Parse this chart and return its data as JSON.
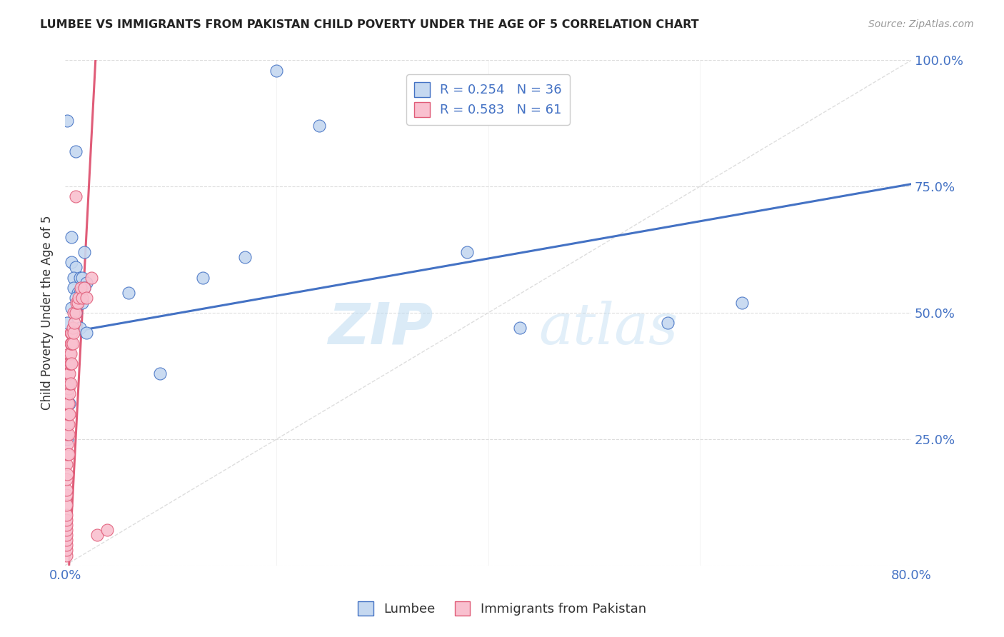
{
  "title": "LUMBEE VS IMMIGRANTS FROM PAKISTAN CHILD POVERTY UNDER THE AGE OF 5 CORRELATION CHART",
  "source": "Source: ZipAtlas.com",
  "ylabel": "Child Poverty Under the Age of 5",
  "xlim": [
    0.0,
    0.8
  ],
  "ylim": [
    0.0,
    1.0
  ],
  "lumbee_R": 0.254,
  "lumbee_N": 36,
  "pakistan_R": 0.583,
  "pakistan_N": 61,
  "lumbee_color": "#c5d8f0",
  "pakistan_color": "#f9c0cf",
  "lumbee_line_color": "#4472c4",
  "pakistan_line_color": "#e05c78",
  "lumbee_scatter": [
    [
      0.002,
      0.88
    ],
    [
      0.01,
      0.82
    ],
    [
      0.006,
      0.65
    ],
    [
      0.018,
      0.62
    ],
    [
      0.006,
      0.6
    ],
    [
      0.01,
      0.59
    ],
    [
      0.008,
      0.57
    ],
    [
      0.014,
      0.57
    ],
    [
      0.016,
      0.57
    ],
    [
      0.02,
      0.56
    ],
    [
      0.008,
      0.55
    ],
    [
      0.018,
      0.55
    ],
    [
      0.012,
      0.54
    ],
    [
      0.014,
      0.54
    ],
    [
      0.01,
      0.53
    ],
    [
      0.012,
      0.52
    ],
    [
      0.016,
      0.52
    ],
    [
      0.006,
      0.51
    ],
    [
      0.01,
      0.5
    ],
    [
      0.002,
      0.48
    ],
    [
      0.014,
      0.47
    ],
    [
      0.02,
      0.46
    ],
    [
      0.002,
      0.36
    ],
    [
      0.004,
      0.32
    ],
    [
      0.002,
      0.28
    ],
    [
      0.002,
      0.25
    ],
    [
      0.06,
      0.54
    ],
    [
      0.09,
      0.38
    ],
    [
      0.13,
      0.57
    ],
    [
      0.17,
      0.61
    ],
    [
      0.2,
      0.98
    ],
    [
      0.24,
      0.87
    ],
    [
      0.38,
      0.62
    ],
    [
      0.43,
      0.47
    ],
    [
      0.57,
      0.48
    ],
    [
      0.64,
      0.52
    ]
  ],
  "pakistan_scatter": [
    [
      0.001,
      0.02
    ],
    [
      0.001,
      0.03
    ],
    [
      0.001,
      0.04
    ],
    [
      0.001,
      0.05
    ],
    [
      0.001,
      0.06
    ],
    [
      0.001,
      0.07
    ],
    [
      0.001,
      0.08
    ],
    [
      0.001,
      0.09
    ],
    [
      0.001,
      0.1
    ],
    [
      0.001,
      0.12
    ],
    [
      0.001,
      0.14
    ],
    [
      0.001,
      0.15
    ],
    [
      0.001,
      0.17
    ],
    [
      0.001,
      0.2
    ],
    [
      0.002,
      0.18
    ],
    [
      0.002,
      0.22
    ],
    [
      0.002,
      0.24
    ],
    [
      0.002,
      0.26
    ],
    [
      0.002,
      0.28
    ],
    [
      0.002,
      0.3
    ],
    [
      0.002,
      0.32
    ],
    [
      0.002,
      0.34
    ],
    [
      0.003,
      0.22
    ],
    [
      0.003,
      0.26
    ],
    [
      0.003,
      0.28
    ],
    [
      0.003,
      0.3
    ],
    [
      0.003,
      0.32
    ],
    [
      0.003,
      0.35
    ],
    [
      0.003,
      0.38
    ],
    [
      0.003,
      0.4
    ],
    [
      0.004,
      0.3
    ],
    [
      0.004,
      0.34
    ],
    [
      0.004,
      0.36
    ],
    [
      0.004,
      0.38
    ],
    [
      0.004,
      0.4
    ],
    [
      0.004,
      0.42
    ],
    [
      0.005,
      0.36
    ],
    [
      0.005,
      0.4
    ],
    [
      0.005,
      0.42
    ],
    [
      0.005,
      0.44
    ],
    [
      0.005,
      0.46
    ],
    [
      0.006,
      0.4
    ],
    [
      0.006,
      0.44
    ],
    [
      0.006,
      0.46
    ],
    [
      0.007,
      0.44
    ],
    [
      0.007,
      0.47
    ],
    [
      0.008,
      0.46
    ],
    [
      0.008,
      0.5
    ],
    [
      0.009,
      0.48
    ],
    [
      0.01,
      0.5
    ],
    [
      0.011,
      0.52
    ],
    [
      0.012,
      0.52
    ],
    [
      0.013,
      0.53
    ],
    [
      0.015,
      0.55
    ],
    [
      0.016,
      0.53
    ],
    [
      0.018,
      0.55
    ],
    [
      0.02,
      0.53
    ],
    [
      0.025,
      0.57
    ],
    [
      0.01,
      0.73
    ],
    [
      0.03,
      0.06
    ],
    [
      0.04,
      0.07
    ]
  ],
  "lumbee_line_pts": [
    [
      0.0,
      0.46
    ],
    [
      0.8,
      0.755
    ]
  ],
  "pakistan_line_pts": [
    [
      0.0,
      -0.15
    ],
    [
      0.03,
      1.05
    ]
  ],
  "diagonal_line": [
    [
      0.0,
      0.0
    ],
    [
      1.0,
      1.25
    ]
  ],
  "watermark_zip": "ZIP",
  "watermark_atlas": "atlas",
  "figsize": [
    14.06,
    8.92
  ],
  "dpi": 100
}
